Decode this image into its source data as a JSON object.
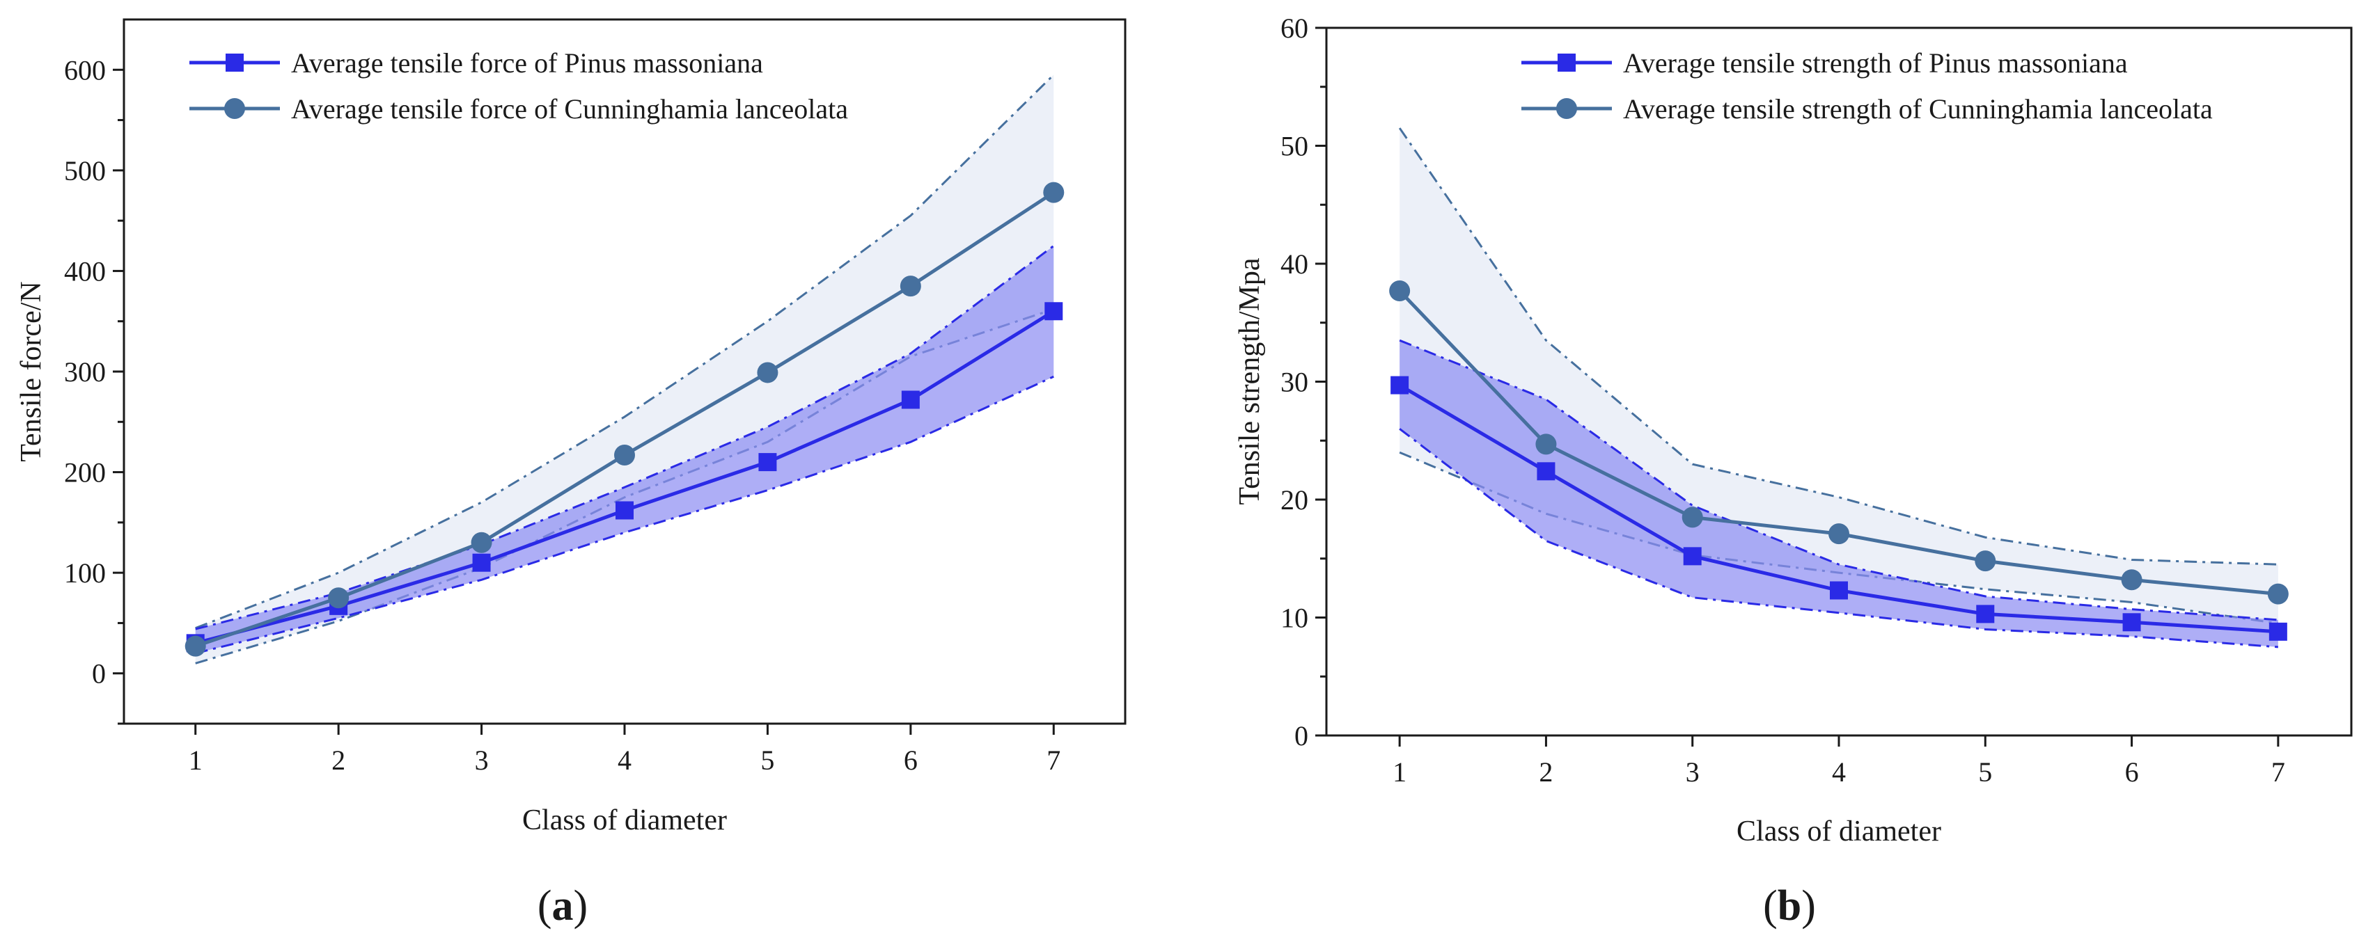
{
  "colors": {
    "pinus": "#2a2ae6",
    "pinus_band": "#8c8cf2",
    "cunninghamia": "#46709e",
    "cunninghamia_band": "#dfe6f3",
    "axis": "#1a1a1a"
  },
  "panels": [
    {
      "label_open": "(",
      "label_letter": "a",
      "label_close": ")"
    },
    {
      "label_open": "(",
      "label_letter": "b",
      "label_close": ")"
    }
  ],
  "chart_data": [
    {
      "type": "line",
      "title": "",
      "xlabel": "Class of diameter",
      "ylabel": "Tensile force/N",
      "x": [
        1,
        2,
        3,
        4,
        5,
        6,
        7
      ],
      "x_ticks": [
        "1",
        "2",
        "3",
        "4",
        "5",
        "6",
        "7"
      ],
      "xlim": [
        0.5,
        7.5
      ],
      "ylim": [
        -50,
        650
      ],
      "y_ticks": [
        "0",
        "100",
        "200",
        "300",
        "400",
        "500",
        "600"
      ],
      "grid": false,
      "legend_position": "top-left",
      "series": [
        {
          "name": "Average tensile force of Pinus massoniana",
          "marker": "square",
          "values": [
            30,
            67,
            110,
            162,
            210,
            272,
            360
          ],
          "lower": [
            20,
            55,
            93,
            140,
            182,
            230,
            295
          ],
          "upper": [
            44,
            80,
            128,
            185,
            245,
            318,
            425
          ]
        },
        {
          "name": "Average tensile force of Cunninghamia lanceolata",
          "marker": "circle",
          "values": [
            27,
            75,
            130,
            217,
            299,
            385,
            478
          ],
          "lower": [
            10,
            52,
            105,
            175,
            230,
            315,
            362
          ],
          "upper": [
            45,
            100,
            170,
            255,
            350,
            455,
            595
          ]
        }
      ]
    },
    {
      "type": "line",
      "title": "",
      "xlabel": "Class of diameter",
      "ylabel": "Tensile strength/Mpa",
      "x": [
        1,
        2,
        3,
        4,
        5,
        6,
        7
      ],
      "x_ticks": [
        "1",
        "2",
        "3",
        "4",
        "5",
        "6",
        "7"
      ],
      "xlim": [
        0.5,
        7.5
      ],
      "ylim": [
        0,
        60
      ],
      "y_ticks": [
        "0",
        "10",
        "20",
        "30",
        "40",
        "50",
        "60"
      ],
      "grid": false,
      "legend_position": "top-right",
      "series": [
        {
          "name": "Average tensile strength of Pinus massoniana",
          "marker": "square",
          "values": [
            29.7,
            22.4,
            15.2,
            12.3,
            10.3,
            9.6,
            8.8
          ],
          "lower": [
            26.0,
            16.5,
            11.7,
            10.4,
            9.0,
            8.4,
            7.5
          ],
          "upper": [
            33.5,
            28.5,
            19.5,
            14.5,
            11.8,
            10.7,
            9.8
          ]
        },
        {
          "name": "Average tensile strength of Cunninghamia lanceolata",
          "marker": "circle",
          "values": [
            37.7,
            24.7,
            18.5,
            17.1,
            14.8,
            13.2,
            12.0
          ],
          "lower": [
            24.0,
            18.8,
            15.3,
            13.8,
            12.4,
            11.3,
            9.5
          ],
          "upper": [
            51.5,
            33.5,
            23.0,
            20.2,
            16.8,
            14.9,
            14.5
          ]
        }
      ]
    }
  ]
}
